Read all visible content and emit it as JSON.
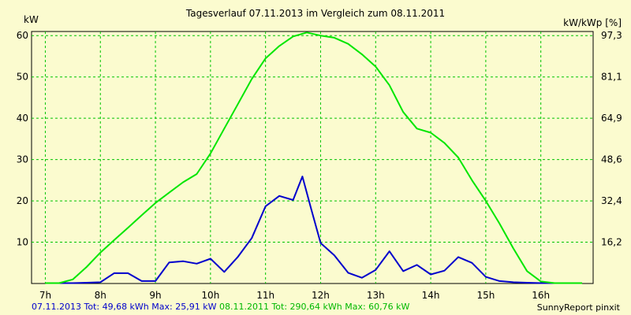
{
  "chart_data": {
    "type": "line",
    "title": "Tagesverlauf 07.11.2013 im Vergleich zum 08.11.2011",
    "ylabel": "kW",
    "ylabel_right": "kW/kWp [%]",
    "xlim": [
      6.75,
      16.95
    ],
    "ylim": [
      0,
      61
    ],
    "x_ticks": [
      7,
      8,
      9,
      10,
      11,
      12,
      13,
      14,
      15,
      16
    ],
    "x_tick_labels": [
      "7h",
      "8h",
      "9h",
      "10h",
      "11h",
      "12h",
      "13h",
      "14h",
      "15h",
      "16h"
    ],
    "y_ticks": [
      10,
      20,
      30,
      40,
      50,
      60
    ],
    "y_tick_labels": [
      "10",
      "20",
      "30",
      "40",
      "50",
      "60"
    ],
    "y2_ticks": [
      10,
      20,
      30,
      40,
      50,
      60
    ],
    "y2_tick_labels": [
      "16,2",
      "32,4",
      "48,6",
      "64,9",
      "81,1",
      "97,3"
    ],
    "grid": true,
    "colors": {
      "background": "#fbfbcf",
      "grid": "#00c400",
      "series_2013": "#0000cc",
      "series_2011": "#00e600"
    },
    "series": [
      {
        "name": "07.11.2013",
        "color": "#0000cc",
        "x": [
          7.0,
          7.25,
          7.5,
          7.75,
          8.0,
          8.25,
          8.5,
          8.75,
          9.0,
          9.25,
          9.5,
          9.75,
          10.0,
          10.25,
          10.5,
          10.75,
          11.0,
          11.25,
          11.5,
          11.67,
          11.83,
          12.0,
          12.25,
          12.5,
          12.75,
          13.0,
          13.25,
          13.5,
          13.75,
          14.0,
          14.25,
          14.5,
          14.75,
          15.0,
          15.25,
          15.5,
          15.75,
          16.0,
          16.25,
          16.5,
          16.75
        ],
        "y": [
          0.1,
          0.1,
          0.1,
          0.2,
          0.3,
          2.5,
          2.5,
          0.6,
          0.6,
          5.1,
          5.4,
          4.8,
          6.0,
          2.8,
          6.5,
          11.0,
          18.7,
          21.2,
          20.2,
          25.9,
          18.0,
          9.8,
          6.8,
          2.6,
          1.4,
          3.3,
          7.8,
          3.0,
          4.5,
          2.2,
          3.1,
          6.4,
          5.0,
          1.6,
          0.6,
          0.3,
          0.2,
          0.1,
          0.1,
          0.1,
          0.1
        ]
      },
      {
        "name": "08.11.2011",
        "color": "#00e600",
        "x": [
          7.0,
          7.25,
          7.5,
          7.75,
          8.0,
          8.25,
          8.5,
          8.75,
          9.0,
          9.25,
          9.5,
          9.75,
          10.0,
          10.25,
          10.5,
          10.75,
          11.0,
          11.25,
          11.5,
          11.75,
          12.0,
          12.25,
          12.5,
          12.75,
          13.0,
          13.25,
          13.5,
          13.75,
          14.0,
          14.25,
          14.5,
          14.75,
          15.0,
          15.25,
          15.5,
          15.75,
          16.0,
          16.25,
          16.5,
          16.75
        ],
        "y": [
          0.1,
          0.1,
          1.0,
          4.0,
          7.5,
          10.5,
          13.5,
          16.5,
          19.5,
          22.0,
          24.5,
          26.5,
          31.5,
          37.5,
          43.5,
          49.5,
          54.5,
          57.5,
          59.8,
          60.76,
          60.0,
          59.5,
          58.0,
          55.5,
          52.5,
          48.0,
          41.5,
          37.5,
          36.5,
          34.0,
          30.5,
          25.0,
          20.0,
          14.5,
          8.5,
          3.0,
          0.5,
          0.1,
          0.1,
          0.1
        ]
      }
    ]
  },
  "legend": {
    "entry_2013": "07.11.2013 Tot: 49,68 kWh Max: 25,91 kW",
    "entry_2011": "08.11.2011 Tot: 290,64 kWh Max: 60,76 kW"
  },
  "credit": "SunnyReport pinxit"
}
